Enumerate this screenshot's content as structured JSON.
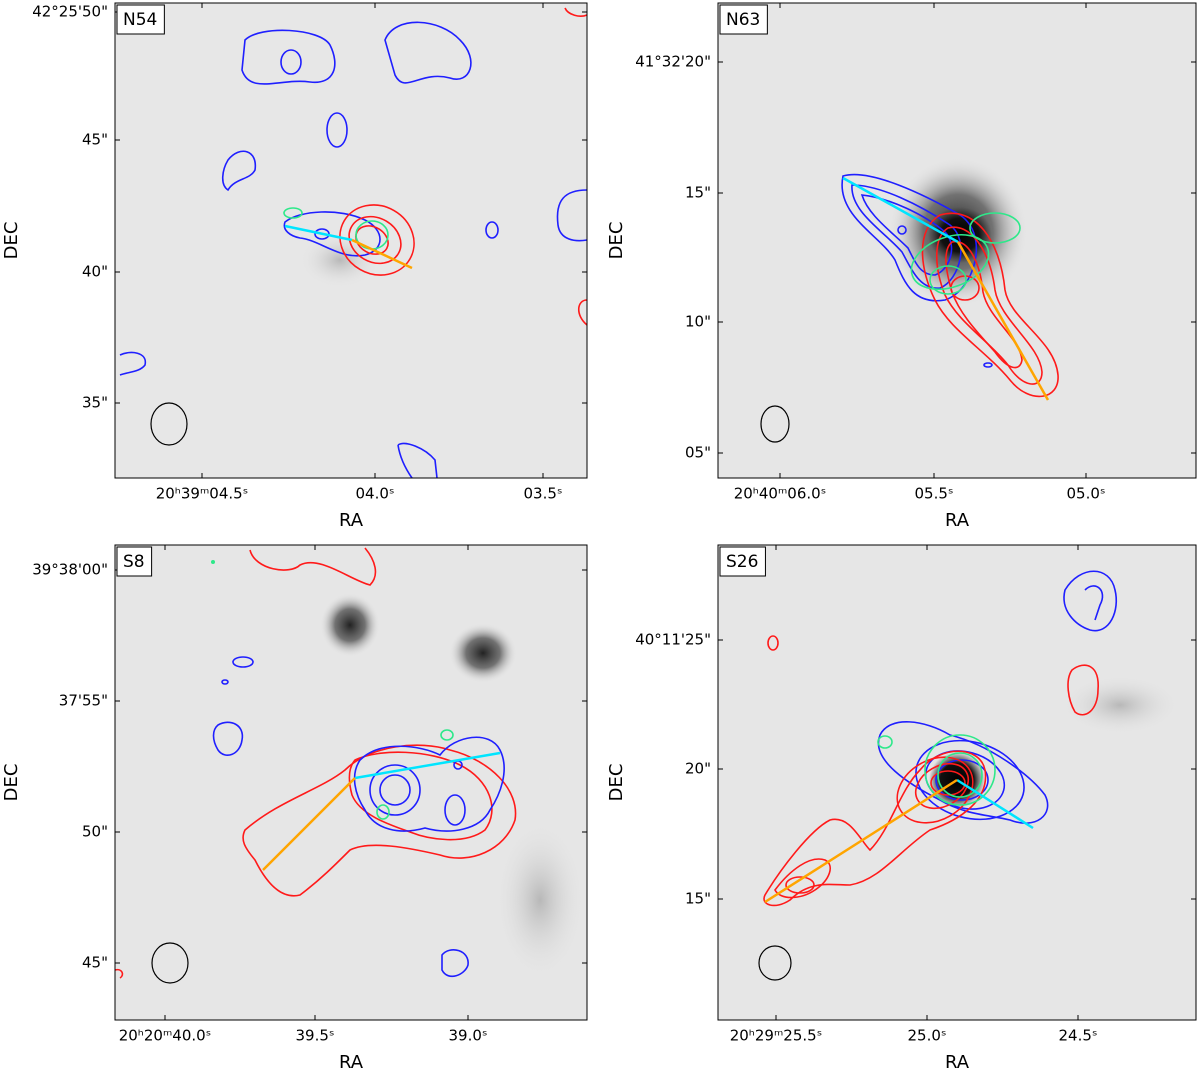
{
  "panels": [
    {
      "label": "N54",
      "x_label": "RA",
      "y_label": "DEC",
      "x_ticks": [
        "20ʰ39ᵐ04.5ˢ",
        "04.0ˢ",
        "03.5ˢ"
      ],
      "y_ticks": [
        "42°25'50\"",
        "45\"",
        "40\"",
        "35\""
      ]
    },
    {
      "label": "N63",
      "x_label": "RA",
      "y_label": "DEC",
      "x_ticks": [
        "20ʰ40ᵐ06.0ˢ",
        "05.5ˢ",
        "05.0ˢ"
      ],
      "y_ticks": [
        "41°32'20\"",
        "15\"",
        "10\"",
        "05\""
      ]
    },
    {
      "label": "S8",
      "x_label": "RA",
      "y_label": "DEC",
      "x_ticks": [
        "20ʰ20ᵐ40.0ˢ",
        "39.5ˢ",
        "39.0ˢ"
      ],
      "y_ticks": [
        "39°38'00\"",
        "37'55\"",
        "50\"",
        "45\""
      ]
    },
    {
      "label": "S26",
      "x_label": "RA",
      "y_label": "DEC",
      "x_ticks": [
        "20ʰ29ᵐ25.5ˢ",
        "25.0ˢ",
        "24.5ˢ"
      ],
      "y_ticks": [
        "40°11'25\"",
        "20\"",
        "15\""
      ]
    }
  ]
}
